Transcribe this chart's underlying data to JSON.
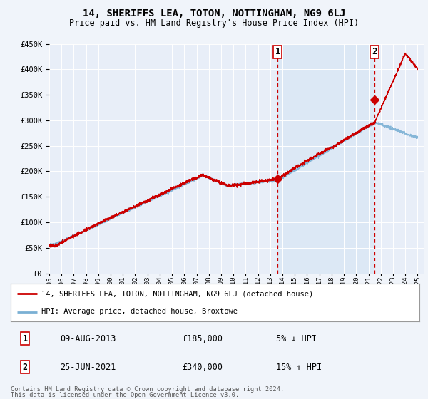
{
  "title": "14, SHERIFFS LEA, TOTON, NOTTINGHAM, NG9 6LJ",
  "subtitle": "Price paid vs. HM Land Registry's House Price Index (HPI)",
  "background_color": "#f0f4fa",
  "plot_bg_color": "#e8eef8",
  "highlight_bg_color": "#dce8f5",
  "x_start_year": 1995,
  "x_end_year": 2025,
  "y_min": 0,
  "y_max": 450000,
  "y_ticks": [
    0,
    50000,
    100000,
    150000,
    200000,
    250000,
    300000,
    350000,
    400000,
    450000
  ],
  "y_tick_labels": [
    "£0",
    "£50K",
    "£100K",
    "£150K",
    "£200K",
    "£250K",
    "£300K",
    "£350K",
    "£400K",
    "£450K"
  ],
  "red_line_color": "#cc0000",
  "blue_line_color": "#7ab0d4",
  "red_line_label": "14, SHERIFFS LEA, TOTON, NOTTINGHAM, NG9 6LJ (detached house)",
  "blue_line_label": "HPI: Average price, detached house, Broxtowe",
  "sale1_year": 2013.6,
  "sale1_price": 185000,
  "sale1_label": "1",
  "sale1_date": "09-AUG-2013",
  "sale1_price_str": "£185,000",
  "sale1_hpi": "5% ↓ HPI",
  "sale2_year": 2021.5,
  "sale2_price": 340000,
  "sale2_label": "2",
  "sale2_date": "25-JUN-2021",
  "sale2_price_str": "£340,000",
  "sale2_hpi": "15% ↑ HPI",
  "footer1": "Contains HM Land Registry data © Crown copyright and database right 2024.",
  "footer2": "This data is licensed under the Open Government Licence v3.0."
}
